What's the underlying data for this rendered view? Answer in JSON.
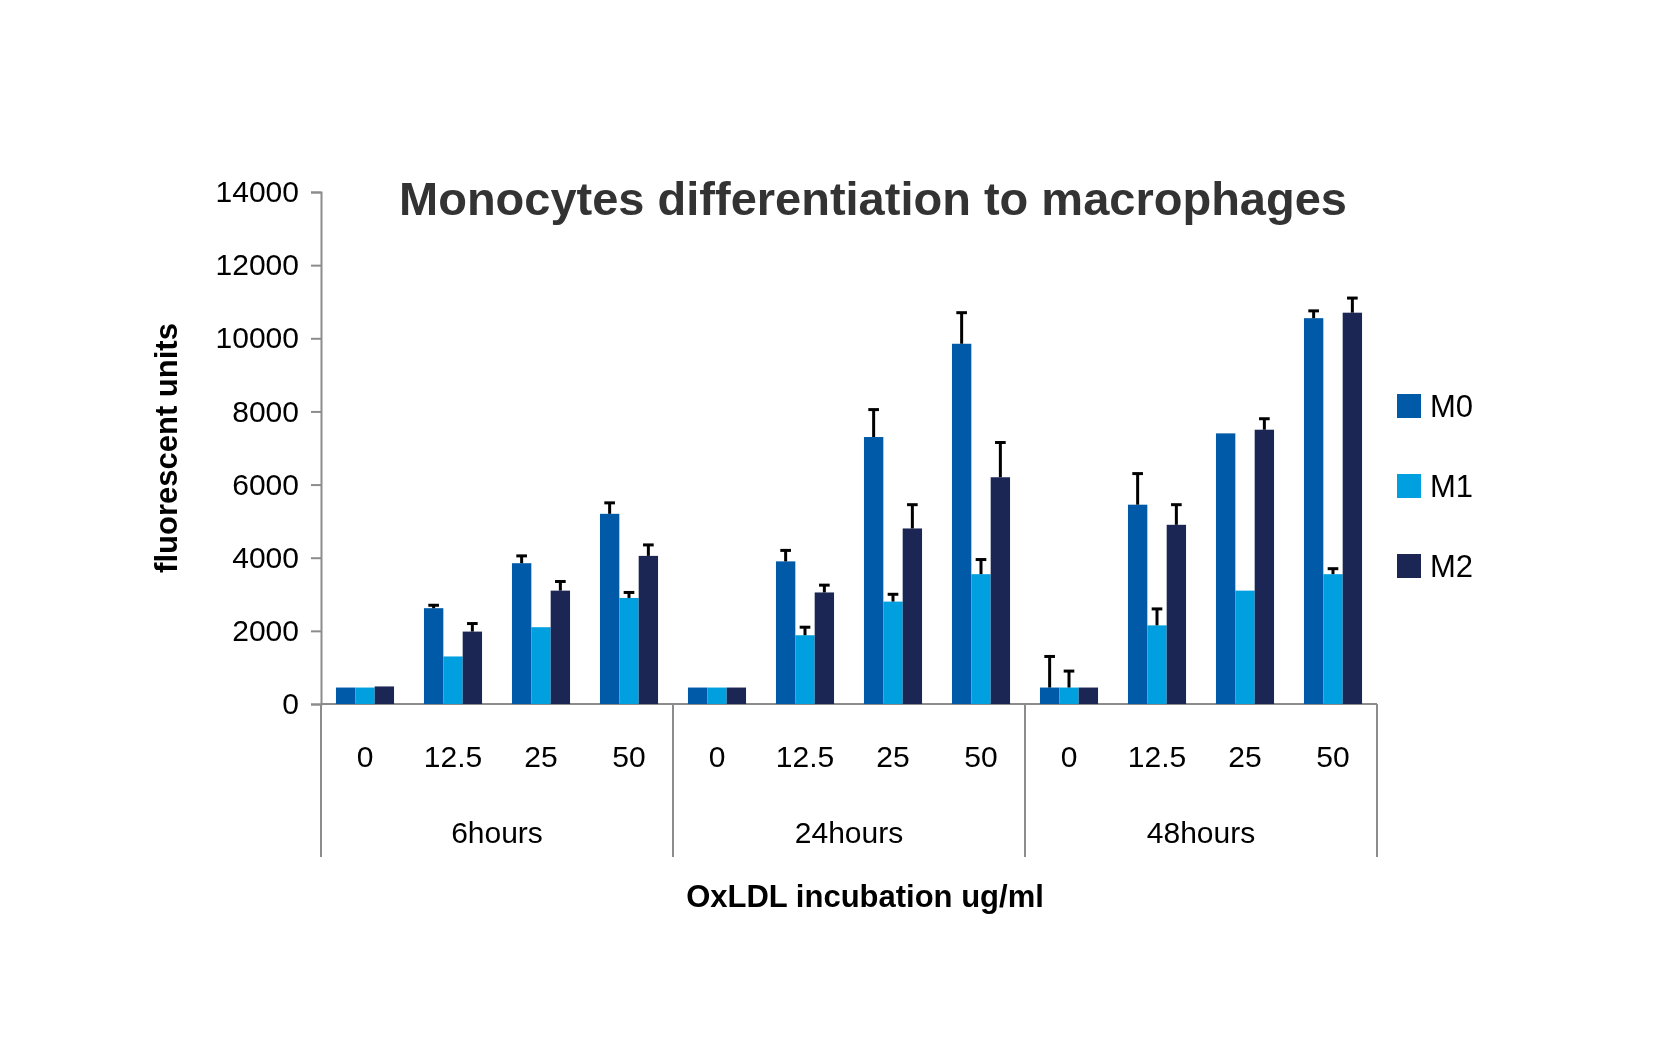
{
  "chart_data": {
    "type": "bar",
    "title": "Monocytes differentiation to macrophages",
    "xlabel": "OxLDL incubation ug/ml",
    "ylabel": "fluorescent units",
    "categories": [
      "0",
      "12.5",
      "25",
      "50",
      "0",
      "12.5",
      "25",
      "50",
      "0",
      "12.5",
      "25",
      "50"
    ],
    "annotations": [
      "6hours",
      "24hours",
      "48hours"
    ],
    "series": [
      {
        "name": "M0",
        "color": "#005aa8",
        "values": [
          450,
          2620,
          3850,
          5200,
          450,
          3900,
          7300,
          9850,
          450,
          5450,
          7400,
          10550
        ],
        "errors": [
          null,
          [
            2620,
            2700
          ],
          [
            3850,
            4050
          ],
          [
            5200,
            5500
          ],
          null,
          [
            3900,
            4200
          ],
          [
            7300,
            8050
          ],
          [
            9850,
            10700
          ],
          [
            450,
            1300
          ],
          [
            5450,
            6300
          ],
          null,
          [
            10550,
            10750
          ]
        ]
      },
      {
        "name": "M1",
        "color": "#00a0e0",
        "values": [
          450,
          1300,
          2100,
          2900,
          450,
          1880,
          2800,
          3550,
          450,
          2150,
          3100,
          3550
        ],
        "errors": [
          null,
          null,
          null,
          [
            2900,
            3050
          ],
          null,
          [
            1880,
            2100
          ],
          [
            2800,
            3000
          ],
          [
            3550,
            3950
          ],
          [
            450,
            900
          ],
          [
            2150,
            2600
          ],
          null,
          [
            3550,
            3700
          ]
        ]
      },
      {
        "name": "M2",
        "color": "#1c2654",
        "values": [
          480,
          1980,
          3100,
          4050,
          450,
          3050,
          4800,
          6200,
          450,
          4900,
          7500,
          10700
        ],
        "errors": [
          null,
          [
            1980,
            2200
          ],
          [
            3100,
            3350
          ],
          [
            4050,
            4350
          ],
          null,
          [
            3050,
            3250
          ],
          [
            4800,
            5450
          ],
          [
            6200,
            7150
          ],
          null,
          [
            4900,
            5450
          ],
          [
            7500,
            7800
          ],
          [
            10700,
            11100
          ]
        ]
      }
    ],
    "ylim": [
      0,
      14000
    ],
    "yticks": [
      0,
      2000,
      4000,
      6000,
      8000,
      10000,
      12000,
      14000
    ],
    "legend": "right"
  }
}
